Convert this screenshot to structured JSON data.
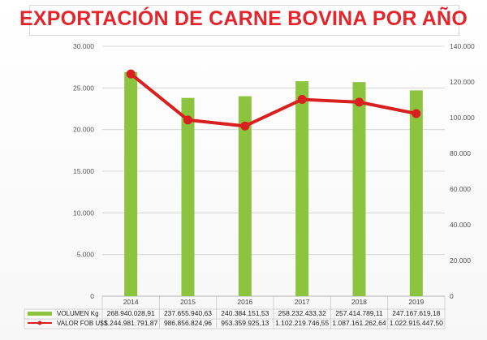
{
  "title": "EXPORTACIÓN DE CARNE BOVINA POR AÑO",
  "colors": {
    "title": "#e3262b",
    "bar": "#8cc43f",
    "line": "#d7201f",
    "grid": "#d0d0d0"
  },
  "chart_data": {
    "type": "bar",
    "title": "EXPORTACIÓN DE CARNE BOVINA POR AÑO",
    "categories": [
      "2014",
      "2015",
      "2016",
      "2017",
      "2018",
      "2019"
    ],
    "grid": true,
    "legend_placement": "bottom-left",
    "y_left": {
      "ylim": [
        0,
        30000
      ],
      "ticks": [
        "0",
        "5.000",
        "10.000",
        "15.000",
        "20.000",
        "25.000",
        "30.000"
      ]
    },
    "y_right": {
      "ylim": [
        0,
        140000
      ],
      "ticks": [
        "0",
        "20.000",
        "40.000",
        "60.000",
        "80.000",
        "100.000",
        "120.000",
        "140.000"
      ]
    },
    "series": [
      {
        "name": "VOLUMEN Kg",
        "type": "bar",
        "axis": "left",
        "values": [
          26900,
          23800,
          24000,
          25800,
          25700,
          24700
        ],
        "table_labels": [
          "268.940.028,91",
          "237.655.940,63",
          "240.384.151,53",
          "258.232.433,32",
          "257.414.789,11",
          "247.167.619,18"
        ]
      },
      {
        "name": "VALOR FOB U$S",
        "type": "line",
        "axis": "right",
        "values": [
          124500,
          98700,
          95300,
          110200,
          108700,
          102300
        ],
        "table_labels": [
          "1.244.981.791,87",
          "986.856.824,96",
          "953.359.925,13",
          "1.102.219.746,55",
          "1.087.161.262,64",
          "1.022.915.447,50"
        ]
      }
    ]
  }
}
